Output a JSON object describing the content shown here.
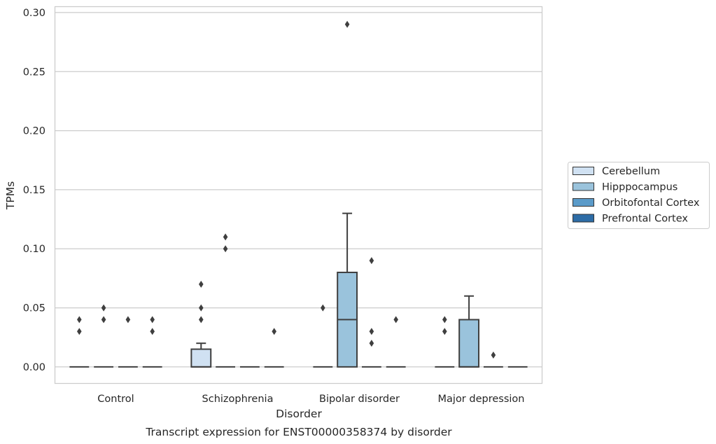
{
  "chart_data": {
    "type": "box",
    "title": "",
    "caption": "Transcript expression for ENST00000358374 by disorder",
    "xlabel": "Disorder",
    "ylabel": "TPMs",
    "ylim": [
      -0.014,
      0.305
    ],
    "yticks": [
      0.0,
      0.05,
      0.1,
      0.15,
      0.2,
      0.25,
      0.3
    ],
    "ytick_labels": [
      "0.00",
      "0.05",
      "0.10",
      "0.15",
      "0.20",
      "0.25",
      "0.30"
    ],
    "grid": "horizontal",
    "legend_position": "right",
    "categories": [
      "Control",
      "Schizophrenia",
      "Bipolar disorder",
      "Major depression"
    ],
    "series": [
      {
        "name": "Cerebellum",
        "color": "#d0e1f2",
        "boxes": [
          {
            "q1": 0,
            "median": 0,
            "q3": 0,
            "whisker_low": 0,
            "whisker_high": 0,
            "outliers": [
              0.03,
              0.04
            ]
          },
          {
            "q1": 0,
            "median": 0,
            "q3": 0.015,
            "whisker_low": 0,
            "whisker_high": 0.02,
            "outliers": [
              0.04,
              0.05,
              0.07
            ]
          },
          {
            "q1": 0,
            "median": 0,
            "q3": 0,
            "whisker_low": 0,
            "whisker_high": 0,
            "outliers": [
              0.05
            ]
          },
          {
            "q1": 0,
            "median": 0,
            "q3": 0,
            "whisker_low": 0,
            "whisker_high": 0,
            "outliers": [
              0.03,
              0.04
            ]
          }
        ]
      },
      {
        "name": "Hipppocampus",
        "color": "#9ac3dc",
        "boxes": [
          {
            "q1": 0,
            "median": 0,
            "q3": 0,
            "whisker_low": 0,
            "whisker_high": 0,
            "outliers": [
              0.04,
              0.05
            ]
          },
          {
            "q1": 0,
            "median": 0,
            "q3": 0,
            "whisker_low": 0,
            "whisker_high": 0,
            "outliers": [
              0.1,
              0.11
            ]
          },
          {
            "q1": 0,
            "median": 0.04,
            "q3": 0.08,
            "whisker_low": 0,
            "whisker_high": 0.13,
            "outliers": [
              0.29
            ]
          },
          {
            "q1": 0,
            "median": 0,
            "q3": 0.04,
            "whisker_low": 0,
            "whisker_high": 0.06,
            "outliers": []
          }
        ]
      },
      {
        "name": "Orbitofontal Cortex",
        "color": "#5b9bc9",
        "boxes": [
          {
            "q1": 0,
            "median": 0,
            "q3": 0,
            "whisker_low": 0,
            "whisker_high": 0,
            "outliers": [
              0.04
            ]
          },
          {
            "q1": 0,
            "median": 0,
            "q3": 0,
            "whisker_low": 0,
            "whisker_high": 0,
            "outliers": []
          },
          {
            "q1": 0,
            "median": 0,
            "q3": 0,
            "whisker_low": 0,
            "whisker_high": 0,
            "outliers": [
              0.02,
              0.03,
              0.09
            ]
          },
          {
            "q1": 0,
            "median": 0,
            "q3": 0,
            "whisker_low": 0,
            "whisker_high": 0,
            "outliers": [
              0.01
            ]
          }
        ]
      },
      {
        "name": "Prefrontal Cortex",
        "color": "#2d6ca6",
        "boxes": [
          {
            "q1": 0,
            "median": 0,
            "q3": 0,
            "whisker_low": 0,
            "whisker_high": 0,
            "outliers": [
              0.03,
              0.04
            ]
          },
          {
            "q1": 0,
            "median": 0,
            "q3": 0,
            "whisker_low": 0,
            "whisker_high": 0,
            "outliers": [
              0.03
            ]
          },
          {
            "q1": 0,
            "median": 0,
            "q3": 0,
            "whisker_low": 0,
            "whisker_high": 0,
            "outliers": [
              0.04
            ]
          },
          {
            "q1": 0,
            "median": 0,
            "q3": 0,
            "whisker_low": 0,
            "whisker_high": 0,
            "outliers": []
          }
        ]
      }
    ]
  }
}
